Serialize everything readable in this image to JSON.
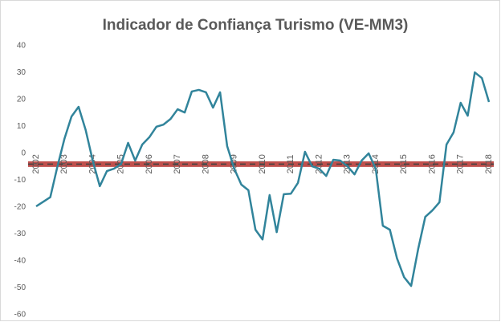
{
  "chart_data": {
    "type": "line",
    "title": "Indicador de Confiança Turismo (VE-MM3)",
    "categories": [
      "2002",
      null,
      null,
      null,
      "2003",
      null,
      null,
      null,
      "2004",
      null,
      null,
      null,
      "2005",
      null,
      null,
      null,
      "2006",
      null,
      null,
      null,
      "2007",
      null,
      null,
      null,
      "2008",
      null,
      null,
      null,
      "2009",
      null,
      null,
      null,
      "2010",
      null,
      null,
      null,
      "2011",
      null,
      null,
      null,
      "2012",
      null,
      null,
      null,
      "2013",
      null,
      null,
      null,
      "2014",
      null,
      null,
      null,
      "2015",
      null,
      null,
      null,
      "2016",
      null,
      null,
      null,
      "2017",
      null,
      null,
      null,
      "2018"
    ],
    "series": [
      {
        "name": "Indicador",
        "color": "#31849b",
        "values": [
          -19.7,
          -18,
          -16.3,
          -5,
          5.4,
          13.7,
          17.3,
          8.7,
          -2.7,
          -12.2,
          -6.6,
          -5.7,
          -4,
          3.9,
          -2.7,
          3.3,
          6,
          9.9,
          10.7,
          12.8,
          16.4,
          15.2,
          23,
          23.6,
          22.7,
          17,
          22.7,
          2.7,
          -5.7,
          -11.6,
          -13.7,
          -28.4,
          -32,
          -15.5,
          -29.3,
          -15.2,
          -15,
          -11,
          0.6,
          -4.8,
          -5.7,
          -8.4,
          -2.4,
          -2.7,
          -4.8,
          -7.8,
          -2.7,
          0,
          -5.7,
          -26.9,
          -28.4,
          -39,
          -46,
          -49.3,
          -35.5,
          -23.6,
          -21.2,
          -18.2,
          3.3,
          7.8,
          18.8,
          14,
          30.1,
          28,
          19.1
        ]
      }
    ],
    "hline": {
      "value": -4,
      "color": "#c0504d"
    },
    "ylim": [
      -60,
      40
    ],
    "yticks": [
      -60,
      -50,
      -40,
      -30,
      -20,
      -10,
      0,
      10,
      20,
      30,
      40
    ],
    "grid": false
  }
}
